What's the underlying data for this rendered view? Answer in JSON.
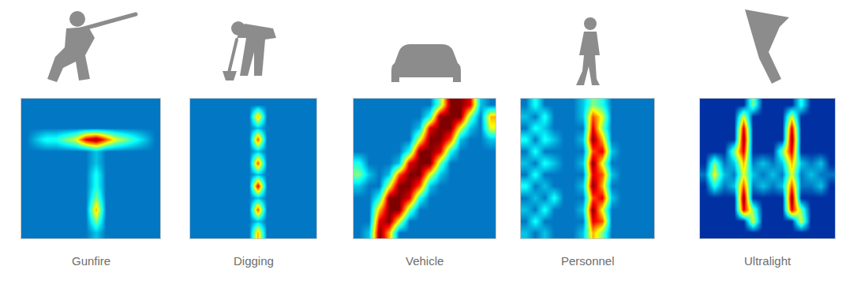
{
  "chart_data": [
    {
      "type": "heatmap",
      "title": "Gunfire",
      "zlim": [
        0,
        10
      ],
      "tick_labels": false,
      "z": [
        [
          2,
          2,
          2,
          2,
          2,
          2,
          2,
          2,
          2,
          2,
          2,
          2,
          2,
          2
        ],
        [
          2,
          2,
          2,
          2,
          2,
          2,
          2,
          2,
          2,
          2,
          2,
          2,
          2,
          2
        ],
        [
          2,
          2,
          2,
          2,
          2,
          2,
          2,
          2,
          2,
          2,
          2,
          2,
          2,
          2
        ],
        [
          2,
          3,
          4,
          4,
          5,
          6,
          9,
          10,
          8,
          6,
          5,
          4,
          3,
          2
        ],
        [
          2,
          2,
          2,
          2,
          2,
          2,
          2,
          3,
          2,
          2,
          2,
          2,
          2,
          2
        ],
        [
          2,
          2,
          2,
          2,
          2,
          2,
          2,
          3,
          2,
          2,
          2,
          2,
          2,
          2
        ],
        [
          2,
          2,
          2,
          2,
          2,
          2,
          2,
          4,
          2,
          2,
          2,
          2,
          2,
          2
        ],
        [
          2,
          2,
          2,
          2,
          2,
          2,
          2,
          4,
          2,
          2,
          2,
          2,
          2,
          2
        ],
        [
          2,
          2,
          2,
          2,
          2,
          2,
          2,
          5,
          2,
          2,
          2,
          2,
          2,
          2
        ],
        [
          2,
          2,
          2,
          2,
          2,
          2,
          2,
          7,
          2,
          2,
          2,
          2,
          2,
          2
        ],
        [
          2,
          2,
          2,
          2,
          2,
          2,
          2,
          5,
          2,
          2,
          2,
          2,
          2,
          2
        ],
        [
          2,
          2,
          2,
          2,
          2,
          2,
          2,
          3,
          2,
          2,
          2,
          2,
          2,
          2
        ]
      ]
    },
    {
      "type": "heatmap",
      "title": "Digging",
      "zlim": [
        0,
        10
      ],
      "tick_labels": false,
      "z": [
        [
          2,
          2,
          2,
          2,
          2,
          2,
          2,
          2,
          2,
          2,
          2,
          2,
          2,
          2
        ],
        [
          2,
          2,
          2,
          2,
          2,
          2,
          2,
          7,
          2,
          2,
          2,
          2,
          2,
          2
        ],
        [
          2,
          2,
          2,
          2,
          2,
          2,
          2,
          3,
          2,
          2,
          2,
          2,
          2,
          2
        ],
        [
          2,
          2,
          2,
          2,
          2,
          2,
          2,
          8,
          2,
          2,
          2,
          2,
          2,
          2
        ],
        [
          2,
          2,
          2,
          2,
          2,
          2,
          2,
          3,
          2,
          2,
          2,
          2,
          2,
          2
        ],
        [
          2,
          2,
          2,
          2,
          2,
          2,
          2,
          8,
          2,
          2,
          2,
          2,
          2,
          2
        ],
        [
          2,
          2,
          2,
          2,
          2,
          2,
          2,
          3,
          2,
          2,
          2,
          2,
          2,
          2
        ],
        [
          2,
          2,
          2,
          2,
          2,
          2,
          2,
          9,
          2,
          2,
          2,
          2,
          2,
          2
        ],
        [
          2,
          2,
          2,
          2,
          2,
          2,
          2,
          3,
          2,
          2,
          2,
          2,
          2,
          2
        ],
        [
          2,
          2,
          2,
          2,
          2,
          2,
          2,
          8,
          2,
          2,
          2,
          2,
          2,
          2
        ],
        [
          2,
          2,
          2,
          2,
          2,
          2,
          2,
          3,
          2,
          2,
          2,
          2,
          2,
          2
        ],
        [
          2,
          2,
          2,
          2,
          2,
          2,
          2,
          7,
          2,
          2,
          2,
          2,
          2,
          2
        ]
      ]
    },
    {
      "type": "heatmap",
      "title": "Vehicle",
      "zlim": [
        0,
        10
      ],
      "tick_labels": false,
      "z": [
        [
          2,
          2,
          2,
          2,
          2,
          2,
          2,
          2,
          5,
          10,
          10,
          9,
          3,
          2
        ],
        [
          2,
          2,
          2,
          2,
          2,
          2,
          2,
          4,
          10,
          10,
          10,
          5,
          2,
          7
        ],
        [
          2,
          2,
          2,
          2,
          2,
          2,
          3,
          9,
          10,
          10,
          6,
          3,
          2,
          6
        ],
        [
          2,
          2,
          2,
          2,
          2,
          2,
          6,
          10,
          10,
          8,
          3,
          2,
          2,
          3
        ],
        [
          2,
          2,
          2,
          2,
          2,
          4,
          10,
          10,
          9,
          4,
          2,
          2,
          2,
          2
        ],
        [
          4,
          2,
          2,
          2,
          3,
          9,
          10,
          10,
          5,
          2,
          2,
          2,
          2,
          2
        ],
        [
          5,
          3,
          2,
          3,
          8,
          10,
          10,
          6,
          3,
          2,
          2,
          2,
          2,
          2
        ],
        [
          3,
          2,
          2,
          6,
          10,
          10,
          8,
          3,
          2,
          2,
          2,
          2,
          2,
          2
        ],
        [
          2,
          2,
          4,
          10,
          10,
          9,
          4,
          2,
          2,
          2,
          2,
          2,
          2,
          2
        ],
        [
          2,
          2,
          7,
          10,
          10,
          5,
          2,
          2,
          2,
          2,
          2,
          2,
          2,
          2
        ],
        [
          2,
          2,
          9,
          10,
          6,
          2,
          2,
          2,
          2,
          2,
          2,
          2,
          2,
          2
        ],
        [
          2,
          3,
          10,
          7,
          2,
          2,
          2,
          2,
          2,
          2,
          2,
          2,
          2,
          2
        ]
      ]
    },
    {
      "type": "heatmap",
      "title": "Personnel",
      "zlim": [
        0,
        10
      ],
      "tick_labels": false,
      "z": [
        [
          2,
          4,
          2,
          2,
          2,
          2,
          3,
          5,
          4,
          2,
          2,
          2,
          2,
          2
        ],
        [
          3,
          2,
          4,
          2,
          2,
          2,
          3,
          8,
          6,
          2,
          2,
          2,
          2,
          2
        ],
        [
          2,
          4,
          3,
          2,
          2,
          2,
          2,
          9,
          5,
          2,
          2,
          2,
          2,
          2
        ],
        [
          4,
          2,
          4,
          3,
          2,
          2,
          3,
          10,
          7,
          2,
          2,
          2,
          2,
          2
        ],
        [
          2,
          4,
          2,
          2,
          2,
          2,
          2,
          8,
          9,
          3,
          2,
          2,
          2,
          2
        ],
        [
          3,
          2,
          4,
          3,
          2,
          2,
          3,
          10,
          6,
          2,
          2,
          2,
          2,
          2
        ],
        [
          2,
          4,
          2,
          2,
          2,
          2,
          2,
          9,
          8,
          3,
          2,
          2,
          2,
          2
        ],
        [
          4,
          2,
          3,
          2,
          2,
          2,
          3,
          10,
          7,
          2,
          2,
          2,
          2,
          2
        ],
        [
          2,
          3,
          2,
          4,
          2,
          2,
          2,
          8,
          9,
          3,
          2,
          2,
          2,
          2
        ],
        [
          3,
          2,
          4,
          2,
          2,
          2,
          3,
          10,
          6,
          2,
          2,
          2,
          2,
          2
        ],
        [
          2,
          4,
          2,
          2,
          2,
          2,
          2,
          9,
          8,
          2,
          2,
          2,
          2,
          2
        ],
        [
          3,
          2,
          3,
          2,
          2,
          2,
          3,
          7,
          5,
          2,
          2,
          2,
          2,
          2
        ]
      ]
    },
    {
      "type": "heatmap",
      "title": "Ultralight",
      "zlim": [
        0,
        10
      ],
      "tick_labels": false,
      "z": [
        [
          1,
          1,
          1,
          1,
          1,
          5,
          1,
          1,
          1,
          1,
          4,
          1,
          1,
          1
        ],
        [
          1,
          1,
          1,
          1,
          6,
          1,
          1,
          1,
          1,
          6,
          1,
          1,
          1,
          1
        ],
        [
          1,
          1,
          1,
          1,
          9,
          1,
          1,
          1,
          1,
          9,
          1,
          1,
          1,
          1
        ],
        [
          1,
          1,
          1,
          1,
          10,
          1,
          1,
          1,
          1,
          10,
          1,
          1,
          1,
          1
        ],
        [
          1,
          1,
          1,
          5,
          9,
          1,
          1,
          1,
          5,
          9,
          1,
          1,
          1,
          1
        ],
        [
          1,
          5,
          2,
          3,
          7,
          2,
          3,
          2,
          3,
          7,
          3,
          2,
          3,
          1
        ],
        [
          2,
          6,
          3,
          2,
          6,
          3,
          2,
          3,
          2,
          6,
          2,
          3,
          2,
          2
        ],
        [
          1,
          4,
          2,
          3,
          8,
          2,
          3,
          2,
          3,
          8,
          2,
          2,
          3,
          1
        ],
        [
          1,
          1,
          1,
          1,
          10,
          1,
          1,
          1,
          1,
          10,
          1,
          1,
          1,
          1
        ],
        [
          1,
          1,
          1,
          1,
          9,
          5,
          1,
          1,
          1,
          9,
          5,
          1,
          1,
          1
        ],
        [
          1,
          1,
          1,
          1,
          1,
          6,
          1,
          1,
          1,
          1,
          6,
          1,
          1,
          1
        ],
        [
          1,
          1,
          1,
          1,
          1,
          1,
          1,
          1,
          1,
          1,
          1,
          1,
          1,
          1
        ]
      ]
    }
  ]
}
